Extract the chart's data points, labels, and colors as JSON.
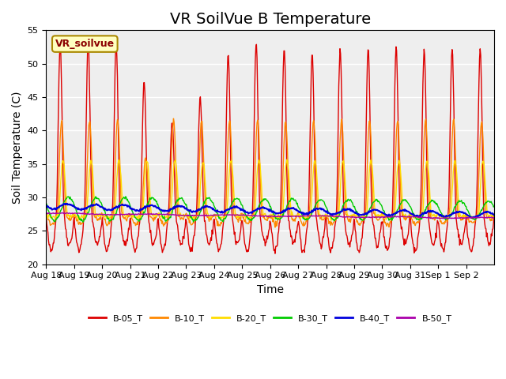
{
  "title": "VR SoilVue B Temperature",
  "xlabel": "Time",
  "ylabel": "Soil Temperature (C)",
  "ylim": [
    20,
    55
  ],
  "yticks": [
    20,
    25,
    30,
    35,
    40,
    45,
    50,
    55
  ],
  "date_labels": [
    "Aug 18",
    "Aug 19",
    "Aug 20",
    "Aug 21",
    "Aug 22",
    "Aug 23",
    "Aug 24",
    "Aug 25",
    "Aug 26",
    "Aug 27",
    "Aug 28",
    "Aug 29",
    "Aug 30",
    "Aug 31",
    "Sep 1",
    "Sep 2"
  ],
  "series_colors": {
    "B-05_T": "#dd0000",
    "B-10_T": "#ff8800",
    "B-20_T": "#ffdd00",
    "B-30_T": "#00cc00",
    "B-40_T": "#0000dd",
    "B-50_T": "#aa00aa"
  },
  "legend_label": "VR_soilvue",
  "background_color": "#ffffff",
  "plot_bg_color": "#eeeeee",
  "grid_color": "#ffffff",
  "title_fontsize": 14,
  "axis_fontsize": 10,
  "tick_fontsize": 8
}
